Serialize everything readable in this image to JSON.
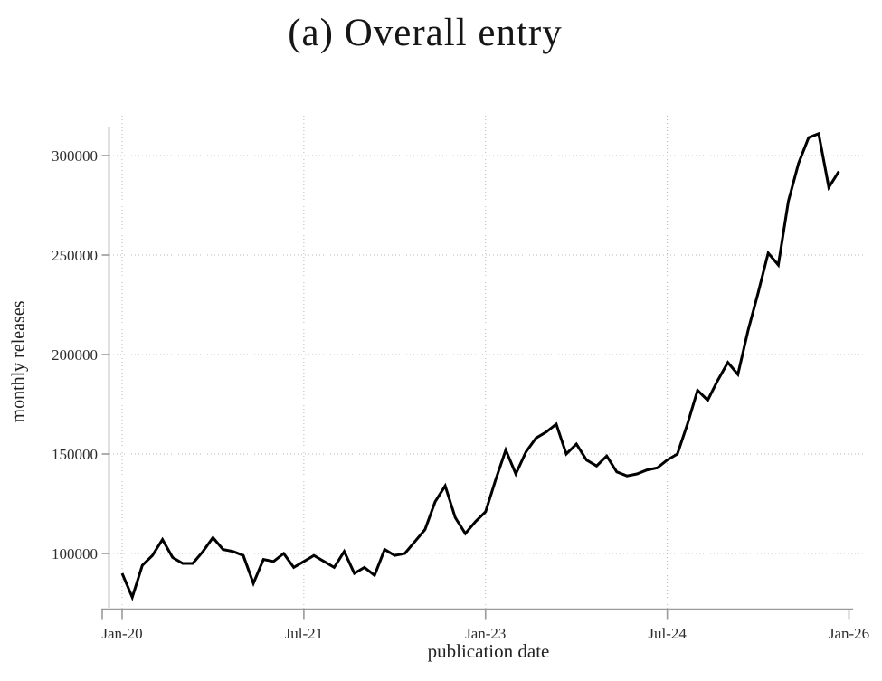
{
  "figure": {
    "background": "#ffffff",
    "panel_label": "(a)"
  },
  "colors": {
    "line": "#000000",
    "axis": "#9a9a9a",
    "grid": "#b8b8b8",
    "text": "#2b2b2b"
  },
  "chart_data": {
    "type": "line",
    "title": "(a) Overall entry",
    "xlabel": "publication date",
    "ylabel": "monthly releases",
    "x_start": "Jan-2020",
    "x_frequency": "monthly",
    "x_tick_labels": [
      "Jan-20",
      "Jul-21",
      "Jan-23",
      "Jul-24",
      "Jan-26"
    ],
    "x_tick_month_indices": [
      0,
      18,
      36,
      54,
      72
    ],
    "y_tick_values": [
      100000,
      150000,
      200000,
      250000,
      300000
    ],
    "ylim": [
      72000,
      318000
    ],
    "grid": true,
    "legend": "none",
    "series": [
      {
        "name": "monthly releases",
        "values": [
          90000,
          78000,
          94000,
          99000,
          107000,
          98000,
          95000,
          95000,
          101000,
          108000,
          102000,
          101000,
          99000,
          85000,
          97000,
          96000,
          100000,
          93000,
          96000,
          99000,
          96000,
          93000,
          101000,
          90000,
          93000,
          89000,
          102000,
          99000,
          100000,
          106000,
          112000,
          126000,
          134000,
          118000,
          110000,
          116000,
          121000,
          137000,
          152000,
          140000,
          151000,
          158000,
          161000,
          165000,
          150000,
          155000,
          147000,
          144000,
          149000,
          141000,
          139000,
          140000,
          142000,
          143000,
          147000,
          150000,
          165000,
          182000,
          177000,
          187000,
          196000,
          190000,
          212000,
          231000,
          251000,
          245000,
          277000,
          296000,
          309000,
          311000,
          284000,
          292000
        ]
      }
    ]
  }
}
